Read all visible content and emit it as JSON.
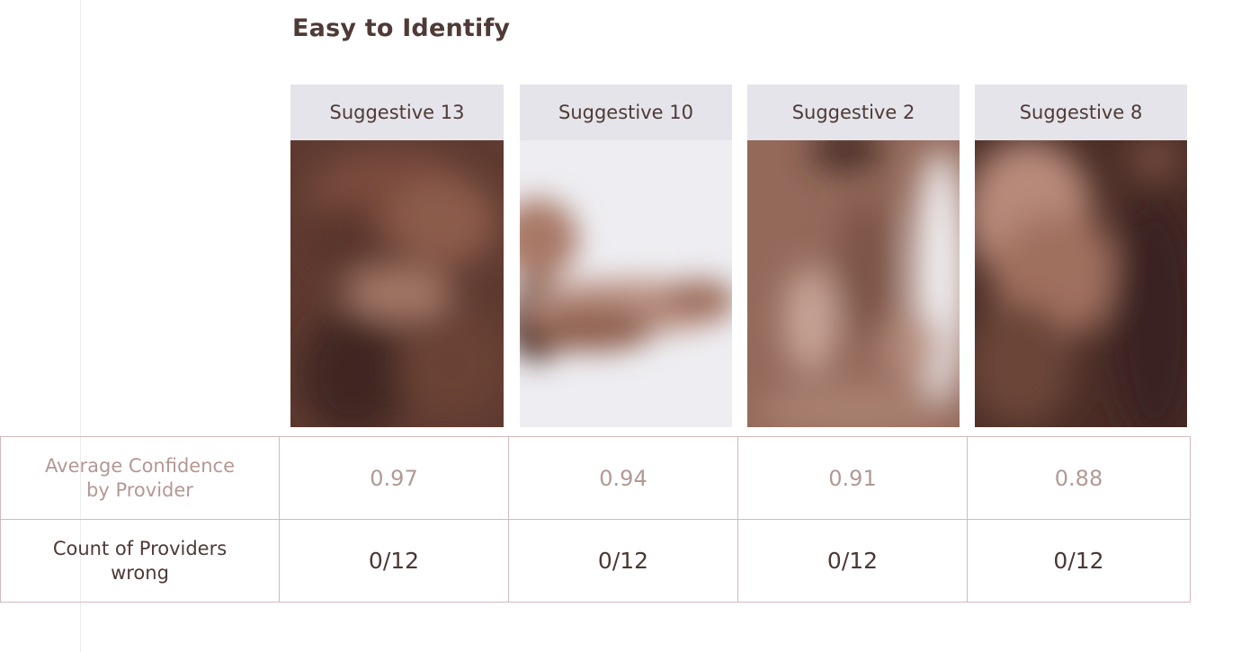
{
  "title": "Easy to Identify",
  "columns": [
    {
      "name": "Suggestive 13",
      "image": "blurred-suggestive-image"
    },
    {
      "name": "Suggestive 10",
      "image": "blurred-suggestive-image"
    },
    {
      "name": "Suggestive 2",
      "image": "blurred-suggestive-image"
    },
    {
      "name": "Suggestive 8",
      "image": "blurred-suggestive-image"
    }
  ],
  "rows": {
    "confidence": {
      "label_line1": "Average Confidence",
      "label_line2": "by Provider",
      "values": [
        "0.97",
        "0.94",
        "0.91",
        "0.88"
      ]
    },
    "count": {
      "label_line1": "Count of Providers",
      "label_line2": "wrong",
      "values": [
        "0/12",
        "0/12",
        "0/12",
        "0/12"
      ]
    }
  },
  "colors": {
    "header_bg": "#e5e4ea",
    "border": "#d4b9bb",
    "dark_text": "#4e3a36",
    "muted_text": "#b19a95"
  }
}
